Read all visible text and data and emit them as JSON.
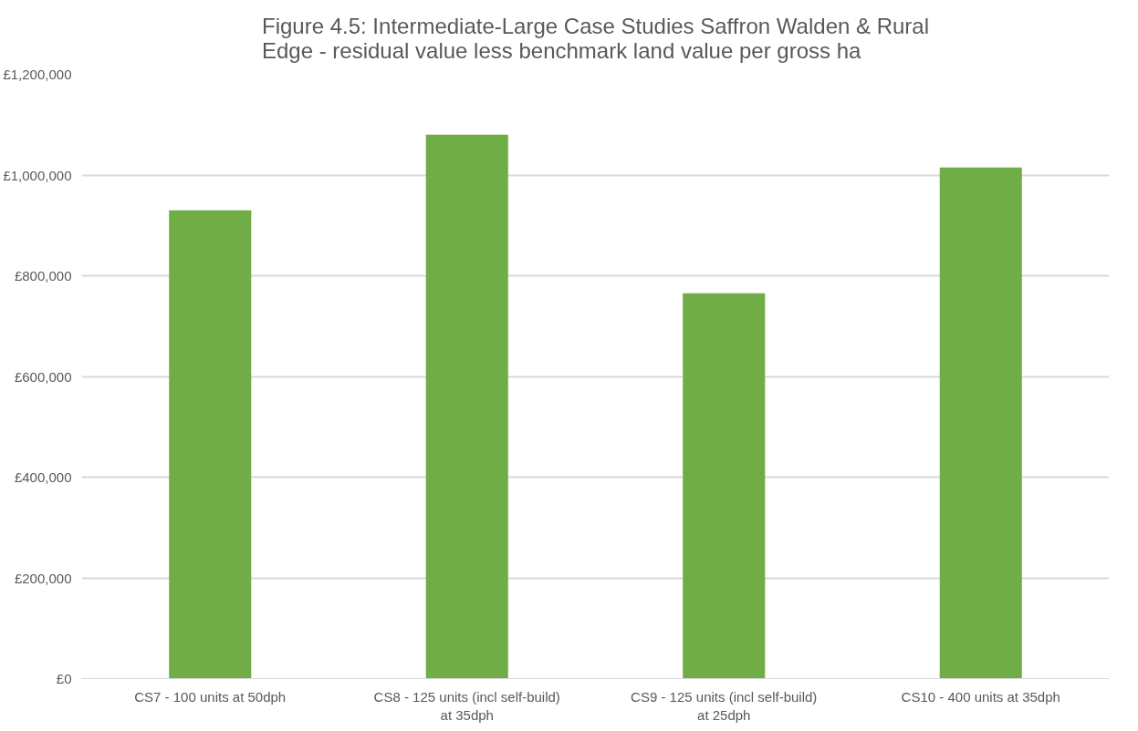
{
  "chart_data": {
    "type": "bar",
    "title": "Figure 4.5: Intermediate-Large Case Studies Saffron Walden & Rural Edge - residual value less benchmark land value per gross ha",
    "categories": [
      "CS7 - 100 units at 50dph",
      "CS8 - 125 units (incl self-build) at 35dph",
      "CS9 - 125 units (incl self-build) at 25dph",
      "CS10 - 400 units at 35dph"
    ],
    "values": [
      930000,
      1080000,
      765000,
      1015000
    ],
    "color": "#70ad47",
    "ylim": [
      0,
      1200000
    ],
    "yticks": [
      {
        "value": 0,
        "label": "£0"
      },
      {
        "value": 200000,
        "label": "£200,000"
      },
      {
        "value": 400000,
        "label": "£400,000"
      },
      {
        "value": 600000,
        "label": "£600,000"
      },
      {
        "value": 800000,
        "label": "£800,000"
      },
      {
        "value": 1000000,
        "label": "£1,000,000"
      },
      {
        "value": 1200000,
        "label": "£1,200,000"
      }
    ],
    "grid": "y"
  }
}
